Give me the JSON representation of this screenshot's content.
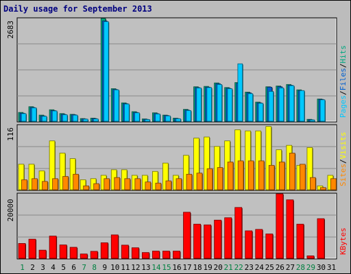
{
  "title": "Daily usage for September 2013",
  "colors": {
    "background": "#bcbcbc",
    "panel": "#c0c0c0",
    "pages": "#00c8ff",
    "files": "#0060d0",
    "hits": "#00a880",
    "visits": "#ffff00",
    "sites": "#ff8800",
    "kbytes": "#ff0000",
    "weekend": "#008040",
    "title": "#00007f"
  },
  "chart_data": [
    {
      "type": "bar",
      "panel": "top",
      "ytick": "2683",
      "ymax": 2683,
      "side_labels": [
        "Pages",
        "/",
        "Files",
        "/",
        "Hits"
      ],
      "categories": [
        "1",
        "2",
        "3",
        "4",
        "5",
        "6",
        "7",
        "8",
        "9",
        "10",
        "11",
        "12",
        "13",
        "14",
        "15",
        "16",
        "17",
        "18",
        "19",
        "20",
        "21",
        "22",
        "23",
        "24",
        "25",
        "26",
        "27",
        "28",
        "29",
        "30",
        "31"
      ],
      "series": [
        {
          "name": "Hits",
          "values": [
            230,
            380,
            160,
            300,
            200,
            180,
            70,
            80,
            2683,
            850,
            480,
            250,
            60,
            220,
            160,
            80,
            310,
            900,
            910,
            1000,
            880,
            1010,
            760,
            500,
            900,
            920,
            960,
            820,
            50,
            580,
            0
          ]
        },
        {
          "name": "Files",
          "values": [
            210,
            360,
            140,
            280,
            180,
            170,
            60,
            70,
            2620,
            830,
            460,
            230,
            50,
            200,
            150,
            70,
            290,
            880,
            890,
            980,
            860,
            990,
            740,
            480,
            890,
            900,
            940,
            800,
            40,
            570,
            0
          ]
        },
        {
          "name": "Pages",
          "values": [
            200,
            350,
            130,
            270,
            170,
            160,
            55,
            60,
            2600,
            820,
            450,
            220,
            45,
            190,
            140,
            65,
            280,
            870,
            880,
            960,
            850,
            1500,
            720,
            470,
            780,
            870,
            930,
            800,
            35,
            560,
            0
          ]
        }
      ]
    },
    {
      "type": "bar",
      "panel": "middle",
      "ytick": "116",
      "ymax": 116,
      "side_labels": [
        "Sites",
        "/",
        "Visits"
      ],
      "categories": [
        "1",
        "2",
        "3",
        "4",
        "5",
        "6",
        "7",
        "8",
        "9",
        "10",
        "11",
        "12",
        "13",
        "14",
        "15",
        "16",
        "17",
        "18",
        "19",
        "20",
        "21",
        "22",
        "23",
        "24",
        "25",
        "26",
        "27",
        "28",
        "29",
        "30",
        "31"
      ],
      "series": [
        {
          "name": "Visits",
          "values": [
            46,
            46,
            34,
            88,
            66,
            56,
            18,
            20,
            26,
            36,
            36,
            26,
            26,
            33,
            48,
            26,
            62,
            93,
            95,
            78,
            88,
            108,
            106,
            106,
            114,
            72,
            80,
            44,
            76,
            7,
            26
          ]
        },
        {
          "name": "Sites",
          "values": [
            18,
            20,
            15,
            20,
            24,
            28,
            7,
            11,
            20,
            22,
            20,
            20,
            14,
            12,
            16,
            20,
            28,
            30,
            38,
            40,
            50,
            52,
            52,
            52,
            44,
            50,
            66,
            46,
            22,
            4,
            20
          ]
        }
      ]
    },
    {
      "type": "bar",
      "panel": "bottom",
      "ytick": "20000",
      "ymax": 27000,
      "side_labels": [
        "KBytes"
      ],
      "categories": [
        "1",
        "2",
        "3",
        "4",
        "5",
        "6",
        "7",
        "8",
        "9",
        "10",
        "11",
        "12",
        "13",
        "14",
        "15",
        "16",
        "17",
        "18",
        "19",
        "20",
        "21",
        "22",
        "23",
        "24",
        "25",
        "26",
        "27",
        "28",
        "29",
        "30",
        "31"
      ],
      "series": [
        {
          "name": "KBytes",
          "values": [
            6200,
            8000,
            3400,
            9300,
            5600,
            4600,
            1800,
            2900,
            6500,
            9800,
            5500,
            4400,
            2400,
            3000,
            3000,
            3000,
            19300,
            14300,
            14000,
            16000,
            17000,
            21300,
            11500,
            12100,
            10200,
            27000,
            24500,
            14300,
            1000,
            16600,
            0
          ]
        }
      ]
    }
  ],
  "days": [
    {
      "label": "1",
      "weekend": true
    },
    {
      "label": "2",
      "weekend": false
    },
    {
      "label": "3",
      "weekend": false
    },
    {
      "label": "4",
      "weekend": false
    },
    {
      "label": "5",
      "weekend": false
    },
    {
      "label": "6",
      "weekend": false
    },
    {
      "label": "7",
      "weekend": true
    },
    {
      "label": "8",
      "weekend": true
    },
    {
      "label": "9",
      "weekend": false
    },
    {
      "label": "10",
      "weekend": false
    },
    {
      "label": "11",
      "weekend": false
    },
    {
      "label": "12",
      "weekend": false
    },
    {
      "label": "13",
      "weekend": false
    },
    {
      "label": "14",
      "weekend": true
    },
    {
      "label": "15",
      "weekend": true
    },
    {
      "label": "16",
      "weekend": false
    },
    {
      "label": "17",
      "weekend": false
    },
    {
      "label": "18",
      "weekend": false
    },
    {
      "label": "19",
      "weekend": false
    },
    {
      "label": "20",
      "weekend": false
    },
    {
      "label": "21",
      "weekend": true
    },
    {
      "label": "22",
      "weekend": true
    },
    {
      "label": "23",
      "weekend": false
    },
    {
      "label": "24",
      "weekend": false
    },
    {
      "label": "25",
      "weekend": false
    },
    {
      "label": "26",
      "weekend": false
    },
    {
      "label": "27",
      "weekend": false
    },
    {
      "label": "28",
      "weekend": true
    },
    {
      "label": "29",
      "weekend": true
    },
    {
      "label": "30",
      "weekend": false
    },
    {
      "label": "31",
      "weekend": false
    }
  ]
}
